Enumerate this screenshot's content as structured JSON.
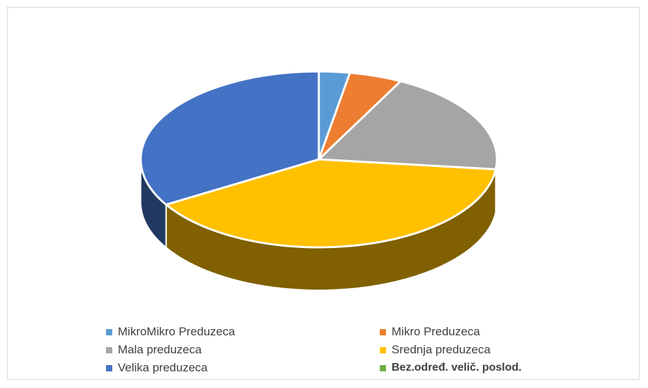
{
  "chart_data": {
    "type": "pie",
    "title": "",
    "series": [
      {
        "name": "MikroMikro Preduzeca",
        "value": 2.8,
        "color": "#5B9BD5"
      },
      {
        "name": "Mikro Preduzeca",
        "value": 4.8,
        "color": "#ED7D31"
      },
      {
        "name": "Mala preduzeca",
        "value": 19.2,
        "color": "#A5A5A5"
      },
      {
        "name": "Srednja preduzeca",
        "value": 39.6,
        "color": "#FFC000"
      },
      {
        "name": "Velika preduzeca",
        "value": 33.6,
        "color": "#4472C4"
      },
      {
        "name": "Bez.određ. velič. poslod.",
        "value": 0,
        "color": "#70AD47"
      }
    ],
    "legend_position": "bottom",
    "style": "3d"
  }
}
